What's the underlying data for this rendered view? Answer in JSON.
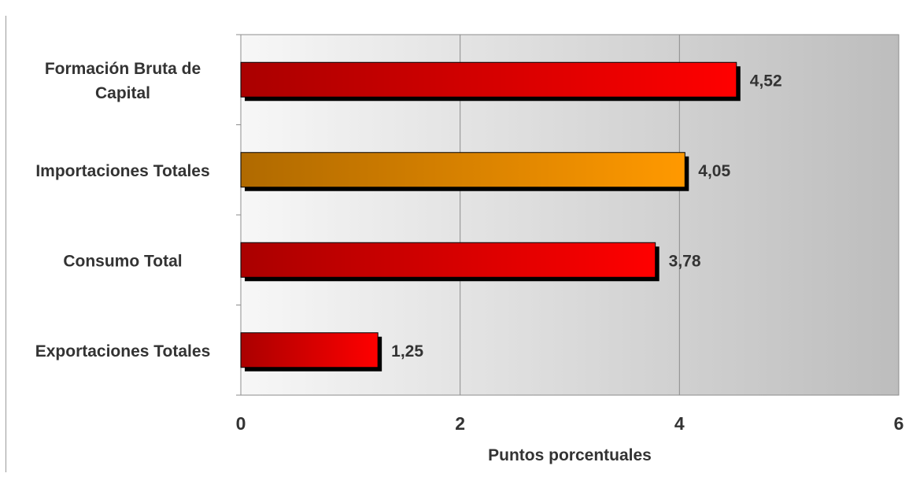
{
  "chart_data": {
    "type": "bar",
    "orientation": "horizontal",
    "categories": [
      "Formación Bruta de Capital",
      "Importaciones Totales",
      "Consumo Total",
      "Exportaciones Totales"
    ],
    "category_lines": [
      [
        "Formación Bruta de",
        "Capital"
      ],
      [
        "Importaciones Totales"
      ],
      [
        "Consumo Total"
      ],
      [
        "Exportaciones Totales"
      ]
    ],
    "values": [
      4.52,
      4.05,
      3.78,
      1.25
    ],
    "value_labels": [
      "4,52",
      "4,05",
      "3,78",
      "1,25"
    ],
    "bar_colors": [
      "#ff0000",
      "#ff9900",
      "#ff0000",
      "#ff0000"
    ],
    "bar_colors_dark": [
      "#aa0000",
      "#b06a00",
      "#aa0000",
      "#aa0000"
    ],
    "title": "",
    "xlabel": "Puntos porcentuales",
    "ylabel": "",
    "xlim": [
      0,
      6
    ],
    "xticks": [
      0,
      2,
      4,
      6
    ],
    "xtick_labels": [
      "0",
      "2",
      "4",
      "6"
    ],
    "grid": true,
    "legend": "none"
  }
}
